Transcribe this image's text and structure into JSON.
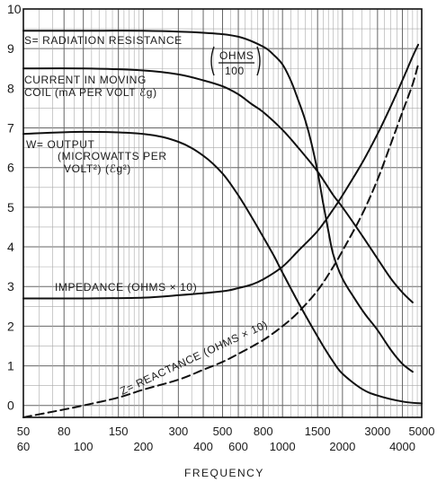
{
  "chart_data": {
    "type": "line",
    "xlabel": "FREQUENCY",
    "xscale": "log",
    "xlim": [
      50,
      5000
    ],
    "ylim": [
      -0.3,
      10
    ],
    "grid": true,
    "y_ticks": [
      "0",
      "1",
      "2",
      "3",
      "4",
      "5",
      "6",
      "7",
      "8",
      "9",
      "10"
    ],
    "x_ticks_upper": [
      "50",
      "80",
      "100",
      "150",
      "200",
      "300",
      "400",
      "500",
      "600",
      "800",
      "1000",
      "1500",
      "2000",
      "3000",
      "4000",
      "5000"
    ],
    "x_ticks_upper_labels": [
      "50",
      "80",
      "",
      "150",
      "",
      "300",
      "",
      "500",
      "",
      "800",
      "",
      "1500",
      "",
      "3000",
      "",
      "5000"
    ],
    "x_ticks_lower_labels": [
      "60",
      "",
      "100",
      "",
      "200",
      "",
      "400",
      "",
      "600",
      "",
      "1000",
      "",
      "2000",
      "",
      "4000",
      ""
    ],
    "series": [
      {
        "name": "S= RADIATION RESISTANCE",
        "label_lines": [
          "S= RADIATION  RESISTANCE"
        ],
        "unit_label": [
          "OHMS",
          "100"
        ],
        "style": "solid",
        "x": [
          50,
          100,
          200,
          400,
          600,
          800,
          900,
          1000,
          1100,
          1200,
          1300,
          1400,
          1500,
          1600,
          1700,
          1800,
          2000,
          2300,
          2600,
          3000,
          3500,
          4000,
          4500
        ],
        "y": [
          9.45,
          9.45,
          9.45,
          9.4,
          9.3,
          9.05,
          8.85,
          8.6,
          8.2,
          7.7,
          7.2,
          6.6,
          5.9,
          5.1,
          4.4,
          3.8,
          3.2,
          2.7,
          2.3,
          1.9,
          1.4,
          1.05,
          0.85
        ]
      },
      {
        "name": "CURRENT IN MOVING COIL (mA PER VOLT eg)",
        "label_lines": [
          "CURRENT  IN  MOVING",
          "COIL  (mA  PER  VOLT  ℰg)"
        ],
        "style": "solid",
        "x": [
          50,
          100,
          200,
          300,
          400,
          500,
          600,
          700,
          800,
          1000,
          1200,
          1500,
          1800,
          2000,
          2500,
          3000,
          3500,
          4000,
          4500
        ],
        "y": [
          8.5,
          8.5,
          8.45,
          8.35,
          8.2,
          8.05,
          7.85,
          7.6,
          7.4,
          6.95,
          6.5,
          5.9,
          5.3,
          5.0,
          4.3,
          3.7,
          3.2,
          2.85,
          2.6
        ]
      },
      {
        "name": "W= OUTPUT (MICROWATTS PER VOLT²) (eg²)",
        "label_lines": [
          "W= OUTPUT",
          "(MICROWATTS  PER",
          "VOLT²)  (ℰg²)"
        ],
        "style": "solid",
        "x": [
          50,
          100,
          200,
          300,
          400,
          500,
          600,
          700,
          800,
          900,
          1000,
          1200,
          1400,
          1600,
          1800,
          2000,
          2500,
          3000,
          4000,
          5000
        ],
        "y": [
          6.85,
          6.9,
          6.85,
          6.65,
          6.3,
          5.85,
          5.3,
          4.75,
          4.25,
          3.8,
          3.35,
          2.6,
          2.0,
          1.5,
          1.1,
          0.8,
          0.42,
          0.25,
          0.1,
          0.05
        ]
      },
      {
        "name": "IMPEDANCE (OHMS × 10)",
        "label_lines": [
          "IMPEDANCE  (OHMS  ×  10)"
        ],
        "style": "solid",
        "x": [
          50,
          100,
          200,
          300,
          500,
          600,
          700,
          800,
          1000,
          1200,
          1500,
          1800,
          2000,
          2500,
          3000,
          3500,
          4000,
          4500,
          4800
        ],
        "y": [
          2.7,
          2.7,
          2.72,
          2.78,
          2.88,
          2.96,
          3.05,
          3.18,
          3.5,
          3.9,
          4.4,
          4.95,
          5.3,
          6.1,
          6.85,
          7.55,
          8.2,
          8.8,
          9.1
        ]
      },
      {
        "name": "Z= REACTANCE (OHMS × 10)",
        "label_lines": [
          "Z= REACTANCE  (OHMS × 10)"
        ],
        "style": "dashed",
        "x": [
          50,
          80,
          100,
          150,
          200,
          300,
          400,
          500,
          600,
          800,
          1000,
          1200,
          1500,
          1800,
          2000,
          2500,
          3000,
          3500,
          4000,
          4500,
          4800
        ],
        "y": [
          -0.3,
          -0.1,
          0.0,
          0.2,
          0.4,
          0.65,
          0.9,
          1.1,
          1.3,
          1.65,
          2.0,
          2.35,
          2.9,
          3.5,
          3.9,
          4.8,
          5.7,
          6.6,
          7.4,
          8.1,
          8.6
        ]
      }
    ]
  }
}
